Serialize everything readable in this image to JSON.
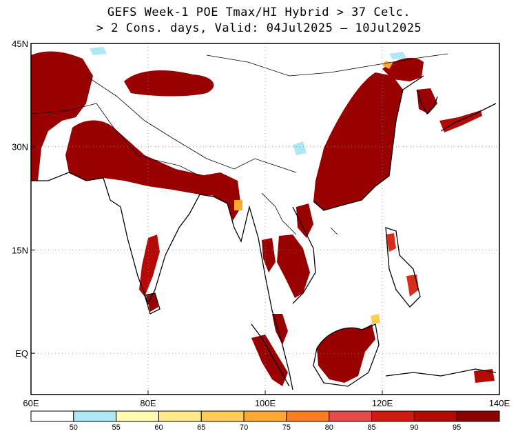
{
  "title": {
    "line1": "GEFS Week-1 POE Tmax/HI Hybrid > 37 Celc.",
    "line2": "> 2 Cons. days, Valid: 04Jul2025 — 10Jul2025"
  },
  "map": {
    "lon_range": [
      60,
      140
    ],
    "lat_range": [
      -6,
      45
    ],
    "lon_ticks": [
      {
        "value": 60,
        "label": "60E"
      },
      {
        "value": 80,
        "label": "80E"
      },
      {
        "value": 100,
        "label": "100E"
      },
      {
        "value": 120,
        "label": "120E"
      },
      {
        "value": 140,
        "label": "140E"
      }
    ],
    "lat_ticks": [
      {
        "value": 45,
        "label": "45N"
      },
      {
        "value": 30,
        "label": "30N"
      },
      {
        "value": 15,
        "label": "15N"
      },
      {
        "value": 0,
        "label": "EQ"
      }
    ],
    "gridlines": "dotted",
    "dominant_region": "probability > 95% over India, Pakistan, Iran, central/eastern China, Indochina, Korea, Japan, Sumatra, Borneo"
  },
  "colorbar": {
    "colors": [
      "#ffffff",
      "#aee8f5",
      "#fffbb0",
      "#ffe98a",
      "#ffcc55",
      "#ffa830",
      "#ff7d20",
      "#e64a4a",
      "#d41a10",
      "#b30a05",
      "#8b0000"
    ],
    "labels": [
      "50",
      "55",
      "60",
      "65",
      "70",
      "75",
      "80",
      "85",
      "90",
      "95"
    ]
  },
  "colors": {
    "heat_dark": "#990000",
    "heat_mid": "#d62e1c",
    "heat_orange": "#ff9a30",
    "coast": "#000000"
  }
}
